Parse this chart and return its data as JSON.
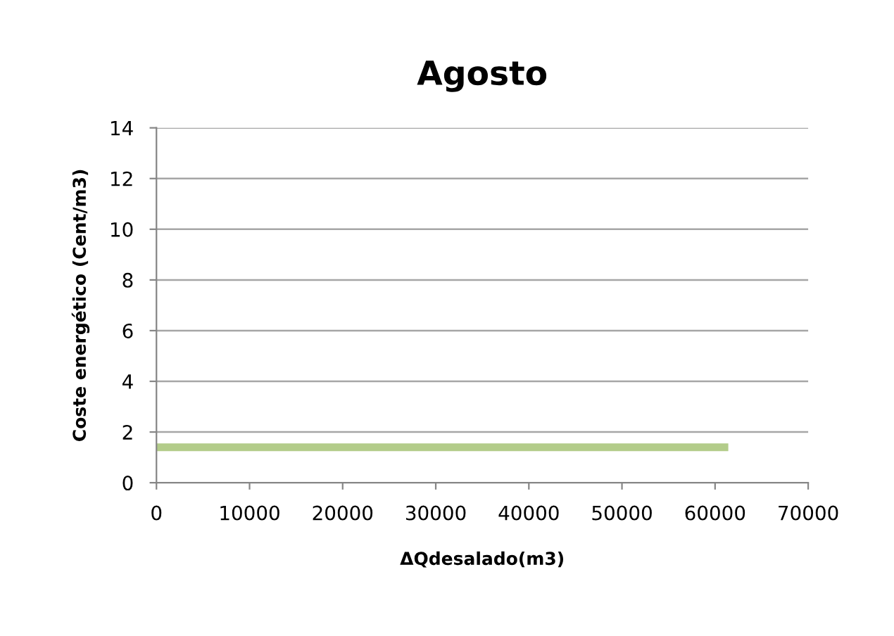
{
  "chart_data": {
    "type": "line",
    "title": "Agosto",
    "xlabel": "ΔQdesalado(m3)",
    "ylabel": "Coste energético (Cent/m3)",
    "x": [
      0,
      61000
    ],
    "series": [
      {
        "color": "#b3cc8a",
        "values": [
          1.4,
          1.4
        ]
      }
    ],
    "xlim": [
      0,
      70000
    ],
    "xticks": [
      0,
      10000,
      20000,
      30000,
      40000,
      50000,
      60000,
      70000
    ],
    "ylim": [
      0,
      14
    ],
    "yticks": [
      0,
      2,
      4,
      6,
      8,
      10,
      12,
      14
    ],
    "grid": "y",
    "marker": "none",
    "line_style": "solid"
  }
}
